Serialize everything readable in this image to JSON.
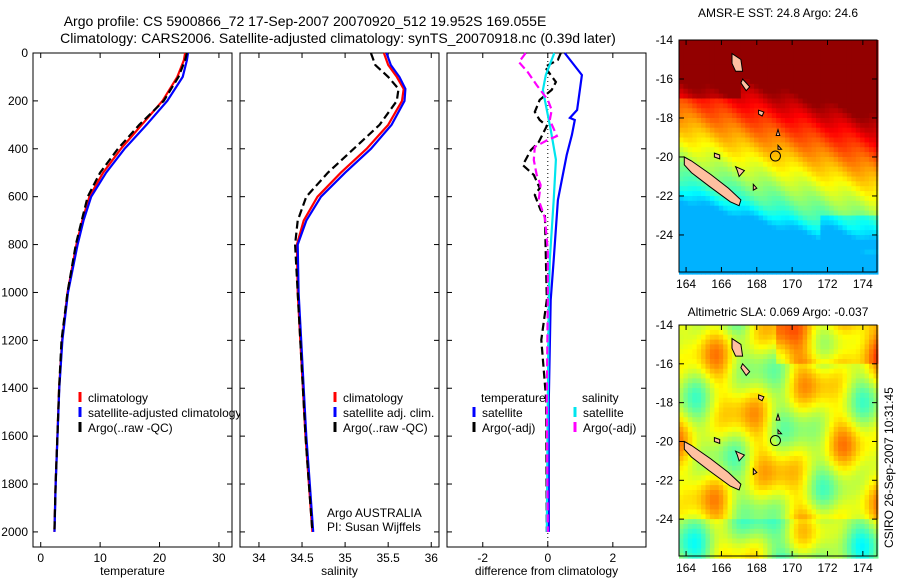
{
  "header": {
    "title_line1": "Argo profile: CS 5900866_72 17-Sep-2007 20070920_512 19.952S 169.055E",
    "title_line2": "Climatology: CARS2006. Satellite-adjusted climatology: synTS_20070918.nc (0.39d later)"
  },
  "side_stamp": "CSIRO 26-Sep-2007 10:31:45",
  "colors": {
    "climatology": "#ff0000",
    "satellite": "#0000ff",
    "argo": "#000000",
    "sal_satellite": "#00e5ee",
    "sal_argo": "#ff00ff"
  },
  "chart_data": [
    {
      "type": "line",
      "id": "temp",
      "xlabel": "temperature",
      "ylabel": "",
      "xlim": [
        -1.3,
        32.2
      ],
      "ylim": [
        2063,
        0
      ],
      "xticks": [
        0,
        10,
        20,
        30
      ],
      "yticks": [
        0,
        200,
        400,
        600,
        800,
        1000,
        1200,
        1400,
        1600,
        1800,
        2000
      ],
      "depth": [
        0,
        30,
        100,
        200,
        300,
        400,
        500,
        600,
        700,
        800,
        1000,
        1200,
        1400,
        1600,
        1800,
        2000
      ],
      "series": [
        {
          "name": "climatology",
          "color": "#ff0000",
          "style": "solid",
          "values": [
            24.3,
            24.1,
            23.0,
            20.5,
            17.0,
            13.5,
            10.5,
            8.2,
            7.0,
            6.0,
            4.5,
            3.6,
            3.1,
            2.8,
            2.5,
            2.3
          ]
        },
        {
          "name": "satellite-adjusted climatology",
          "color": "#0000ff",
          "style": "solid",
          "values": [
            24.8,
            24.6,
            23.9,
            21.3,
            17.8,
            14.1,
            11.0,
            8.5,
            7.2,
            6.2,
            4.6,
            3.65,
            3.12,
            2.82,
            2.52,
            2.32
          ]
        },
        {
          "name": "Argo(..raw -QC)",
          "color": "#000000",
          "style": "dashed",
          "values": [
            24.6,
            24.3,
            23.2,
            20.7,
            16.6,
            13.0,
            10.0,
            7.9,
            6.9,
            5.9,
            4.5,
            3.5,
            3.1,
            2.8,
            2.5,
            2.3
          ]
        }
      ],
      "legend": [
        "climatology",
        "satellite-adjusted climatology",
        "Argo(..raw -QC)"
      ],
      "legend_position": "lower-right"
    },
    {
      "type": "line",
      "id": "sal",
      "xlabel": "salinity",
      "xlim": [
        33.78,
        36.09
      ],
      "ylim": [
        2063,
        0
      ],
      "xticks": [
        34,
        34.5,
        35,
        35.5,
        36
      ],
      "depth": [
        0,
        50,
        100,
        150,
        200,
        300,
        400,
        500,
        600,
        700,
        800,
        1000,
        1200,
        1400,
        1600,
        1800,
        2000
      ],
      "series": [
        {
          "name": "climatology",
          "color": "#ff0000",
          "style": "solid",
          "values": [
            35.45,
            35.5,
            35.6,
            35.68,
            35.66,
            35.5,
            35.25,
            34.95,
            34.68,
            34.52,
            34.44,
            34.45,
            34.48,
            34.51,
            34.54,
            34.58,
            34.62
          ]
        },
        {
          "name": "satellite adj. clim.",
          "color": "#0000ff",
          "style": "solid",
          "values": [
            35.48,
            35.53,
            35.63,
            35.7,
            35.69,
            35.54,
            35.3,
            35.0,
            34.72,
            34.55,
            34.45,
            34.46,
            34.49,
            34.52,
            34.55,
            34.59,
            34.63
          ]
        },
        {
          "name": "Argo(..raw -QC)",
          "color": "#000000",
          "style": "dashed",
          "values": [
            35.3,
            35.35,
            35.5,
            35.62,
            35.6,
            35.4,
            35.1,
            34.8,
            34.55,
            34.45,
            34.42,
            34.45,
            34.48,
            34.51,
            34.54,
            34.58,
            34.62
          ]
        }
      ],
      "legend": [
        "climatology",
        "satellite adj. clim.",
        "Argo(..raw -QC)"
      ],
      "annotation": [
        "Argo AUSTRALIA",
        "PI: Susan Wijffels"
      ]
    },
    {
      "type": "line",
      "id": "diff",
      "xlabel": "difference from climatology",
      "xlim": [
        -3.1,
        3.02
      ],
      "ylim": [
        2063,
        0
      ],
      "xticks": [
        -2,
        0,
        2
      ],
      "series": [
        {
          "name": "temperature satellite",
          "color": "#0000ff",
          "style": "solid",
          "depth": [
            0,
            92,
            238,
            271,
            280,
            342,
            426,
            614,
            864,
            1031,
            1449,
            2000
          ],
          "values": [
            0.52,
            1.05,
            0.9,
            0.68,
            0.83,
            0.74,
            0.58,
            0.31,
            0.18,
            0.09,
            0.03,
            0.03
          ]
        },
        {
          "name": "temperature Argo(-adj)",
          "color": "#000000",
          "style": "dashed",
          "depth": [
            0,
            29,
            58,
            92,
            121,
            154,
            196,
            246,
            280,
            305,
            372,
            405,
            468,
            509,
            564,
            593,
            656,
            676,
            1031,
            1198,
            1449,
            2000
          ],
          "values": [
            0.4,
            0.31,
            -0.09,
            0.09,
            0.25,
            0.12,
            -0.25,
            -0.4,
            -0.25,
            -0.03,
            -0.28,
            -0.52,
            -0.77,
            -0.43,
            -0.25,
            -0.4,
            -0.22,
            -0.09,
            -0.03,
            -0.2,
            -0.05,
            -0.03
          ]
        },
        {
          "name": "salinity satellite",
          "color": "#00e5ee",
          "style": "solid",
          "depth": [
            0,
            92,
            155,
            320,
            445,
            614,
            864,
            1031,
            1449,
            2000
          ],
          "values": [
            0.2,
            -0.06,
            -0.15,
            0.09,
            0.25,
            0.18,
            0.06,
            0.03,
            0,
            -0.03
          ]
        },
        {
          "name": "salinity Argo(-adj)",
          "color": "#ff00ff",
          "style": "dashed",
          "depth": [
            0,
            38,
            79,
            134,
            196,
            238,
            280,
            347,
            363,
            392,
            447,
            509,
            551,
            614,
            689,
            823,
            1031,
            1449,
            2000
          ],
          "values": [
            -0.68,
            -0.89,
            -0.62,
            -0.34,
            0,
            0.12,
            0.06,
            0.28,
            0,
            -0.4,
            -0.43,
            -0.34,
            -0.22,
            -0.28,
            -0.09,
            0,
            0,
            -0.03,
            0
          ]
        }
      ],
      "legend_headers": [
        "temperature",
        "salinity"
      ],
      "legend": [
        "satellite",
        "Argo(-adj)",
        "satellite",
        "Argo(-adj)"
      ]
    },
    {
      "type": "heatmap",
      "id": "sst",
      "title": "AMSR-E SST: 24.8 Argo: 24.6",
      "xlim": [
        163.6,
        174.8
      ],
      "ylim": [
        -25.9,
        -14
      ],
      "xticks": [
        164,
        166,
        168,
        170,
        172,
        174
      ],
      "yticks": [
        -14,
        -16,
        -18,
        -20,
        -22,
        -24
      ],
      "profile_location": [
        169.055,
        -19.952
      ]
    },
    {
      "type": "heatmap",
      "id": "sla",
      "title": "Altimetric SLA: 0.069 Argo: -0.037",
      "xlim": [
        163.6,
        174.8
      ],
      "ylim": [
        -25.9,
        -14
      ],
      "xticks": [
        164,
        166,
        168,
        170,
        172,
        174
      ],
      "yticks": [
        -14,
        -16,
        -18,
        -20,
        -22,
        -24
      ],
      "profile_location": [
        169.055,
        -19.952
      ]
    }
  ]
}
